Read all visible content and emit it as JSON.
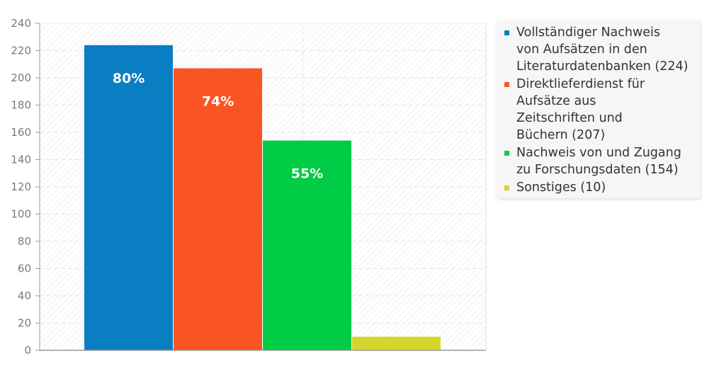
{
  "chart_data": {
    "type": "bar",
    "categories": [
      "Vollständiger Nachweis von Aufsätzen in den Literaturdatenbanken",
      "Direktlieferdienst für Aufsätze aus Zeitschriften und Büchern",
      "Nachweis von und Zugang zu Forschungsdaten",
      "Sonstiges"
    ],
    "values": [
      224,
      207,
      154,
      10
    ],
    "bar_labels": [
      "80%",
      "74%",
      "55%",
      ""
    ],
    "colors": [
      "#0a7ec2",
      "#fb5423",
      "#00cc45",
      "#d6d52e"
    ],
    "ylim": [
      0,
      240
    ],
    "yticks": [
      0,
      20,
      40,
      60,
      80,
      100,
      120,
      140,
      160,
      180,
      200,
      220,
      240
    ],
    "grid": true,
    "legend_position": "right",
    "legend": [
      {
        "lines": [
          "Vollständiger Nachweis",
          "von Aufsätzen in den",
          "Literaturdatenbanken (224)"
        ],
        "color": "#0a7ec2"
      },
      {
        "lines": [
          "Direktlieferdienst für",
          "Aufsätze aus",
          "Zeitschriften und",
          "Büchern (207)"
        ],
        "color": "#fb5423"
      },
      {
        "lines": [
          "Nachweis von und Zugang",
          "zu Forschungsdaten (154)"
        ],
        "color": "#00cc45"
      },
      {
        "lines": [
          "Sonstiges (10)"
        ],
        "color": "#d6d52e"
      }
    ]
  }
}
